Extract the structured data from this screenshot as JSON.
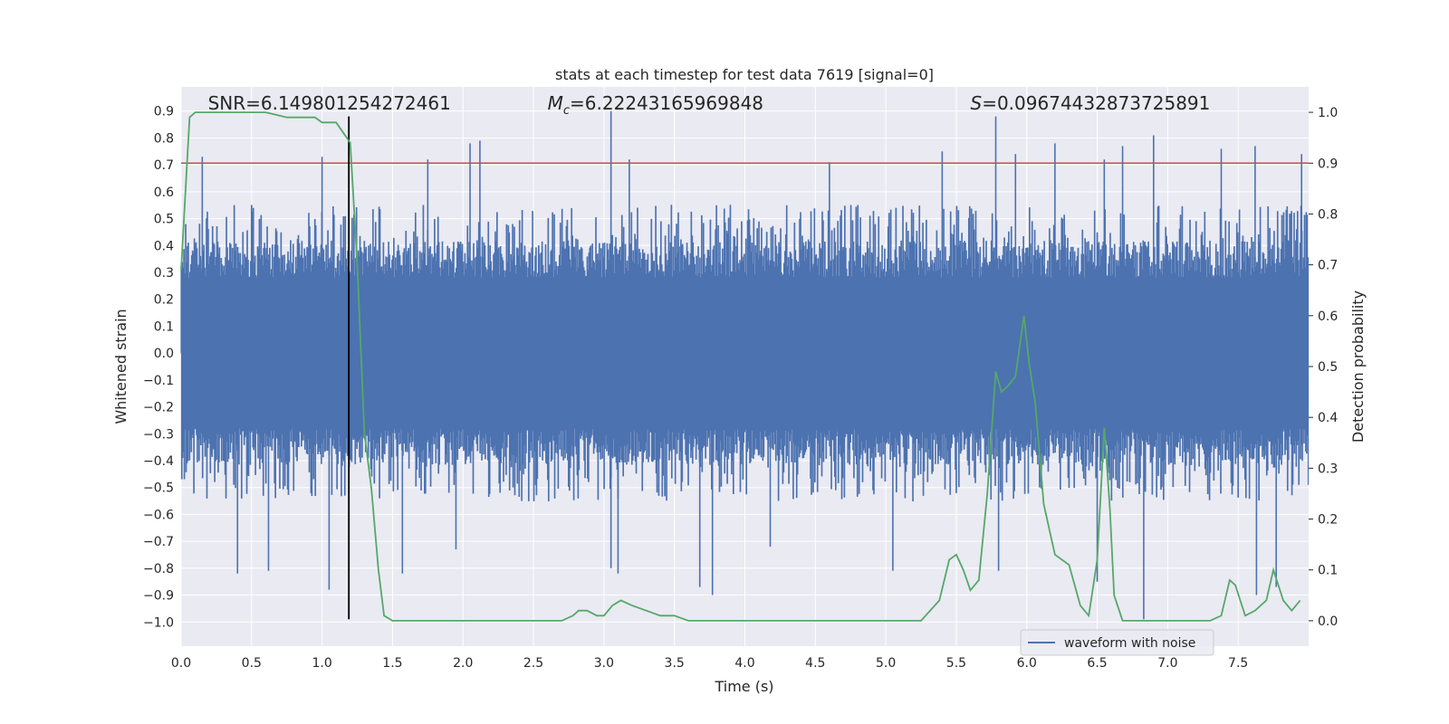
{
  "chart_data": {
    "type": "line",
    "title": "stats at each timestep for test data 7619 [signal=0]",
    "xlabel": "Time (s)",
    "ylabel": "Whitened strain",
    "y2label": "Detection probability",
    "xlim": [
      0.0,
      8.0
    ],
    "ylim": [
      -1.09,
      0.99
    ],
    "y2lim": [
      -0.05,
      1.05
    ],
    "x_ticks": [
      "0.0",
      "0.5",
      "1.0",
      "1.5",
      "2.0",
      "2.5",
      "3.0",
      "3.5",
      "4.0",
      "4.5",
      "5.0",
      "5.5",
      "6.0",
      "6.5",
      "7.0",
      "7.5"
    ],
    "y_ticks": [
      "0.9",
      "0.8",
      "0.7",
      "0.6",
      "0.5",
      "0.4",
      "0.3",
      "0.2",
      "0.1",
      "0.0",
      "−0.1",
      "−0.2",
      "−0.3",
      "−0.4",
      "−0.5",
      "−0.6",
      "−0.7",
      "−0.8",
      "−0.9",
      "−1.0"
    ],
    "y2_ticks": [
      "1.0",
      "0.9",
      "0.8",
      "0.7",
      "0.6",
      "0.5",
      "0.4",
      "0.3",
      "0.2",
      "0.1",
      "0.0"
    ],
    "grid": true,
    "legend_position": "bottom-right",
    "series": [
      {
        "name": "waveform with noise",
        "axis": "left",
        "color": "#4c72b0",
        "style": "dense-noise",
        "duration": 8.0,
        "core_amplitude": 0.28,
        "typical_peak": 0.45,
        "spikes": [
          {
            "x": 0.15,
            "y": 0.73
          },
          {
            "x": 1.0,
            "y": 0.73
          },
          {
            "x": 1.75,
            "y": 0.72
          },
          {
            "x": 2.05,
            "y": 0.78
          },
          {
            "x": 2.12,
            "y": 0.79
          },
          {
            "x": 3.05,
            "y": 0.9
          },
          {
            "x": 3.18,
            "y": 0.72
          },
          {
            "x": 4.6,
            "y": 0.71
          },
          {
            "x": 5.4,
            "y": 0.75
          },
          {
            "x": 5.78,
            "y": 0.88
          },
          {
            "x": 5.92,
            "y": 0.74
          },
          {
            "x": 6.2,
            "y": 0.78
          },
          {
            "x": 6.55,
            "y": 0.72
          },
          {
            "x": 6.68,
            "y": 0.77
          },
          {
            "x": 6.9,
            "y": 0.81
          },
          {
            "x": 7.38,
            "y": 0.76
          },
          {
            "x": 7.62,
            "y": 0.77
          },
          {
            "x": 7.95,
            "y": 0.74
          },
          {
            "x": 0.4,
            "y": -0.82
          },
          {
            "x": 0.62,
            "y": -0.81
          },
          {
            "x": 1.05,
            "y": -0.88
          },
          {
            "x": 1.57,
            "y": -0.82
          },
          {
            "x": 1.95,
            "y": -0.73
          },
          {
            "x": 3.05,
            "y": -0.8
          },
          {
            "x": 3.1,
            "y": -0.82
          },
          {
            "x": 3.68,
            "y": -0.87
          },
          {
            "x": 3.77,
            "y": -0.9
          },
          {
            "x": 4.18,
            "y": -0.72
          },
          {
            "x": 5.05,
            "y": -0.81
          },
          {
            "x": 5.8,
            "y": -0.81
          },
          {
            "x": 6.5,
            "y": -0.85
          },
          {
            "x": 6.83,
            "y": -0.99
          },
          {
            "x": 7.63,
            "y": -0.9
          },
          {
            "x": 7.77,
            "y": -0.87
          }
        ]
      },
      {
        "name": "",
        "axis": "right",
        "color": "#55a868",
        "x": [
          0.0,
          0.06,
          0.1,
          0.2,
          0.4,
          0.6,
          0.75,
          0.8,
          0.95,
          1.0,
          1.05,
          1.1,
          1.15,
          1.2,
          1.25,
          1.3,
          1.35,
          1.4,
          1.44,
          1.5,
          1.6,
          2.0,
          2.5,
          2.6,
          2.7,
          2.78,
          2.82,
          2.88,
          2.95,
          3.0,
          3.06,
          3.12,
          3.2,
          3.3,
          3.4,
          3.45,
          3.5,
          3.6,
          3.8,
          4.0,
          4.5,
          5.0,
          5.25,
          5.38,
          5.45,
          5.5,
          5.55,
          5.6,
          5.66,
          5.72,
          5.78,
          5.82,
          5.86,
          5.92,
          5.98,
          6.02,
          6.06,
          6.12,
          6.2,
          6.3,
          6.38,
          6.44,
          6.5,
          6.55,
          6.59,
          6.62,
          6.68,
          6.75,
          7.0,
          7.3,
          7.38,
          7.44,
          7.48,
          7.55,
          7.62,
          7.7,
          7.75,
          7.82,
          7.88,
          7.94
        ],
        "y": [
          0.69,
          0.99,
          1.0,
          1.0,
          1.0,
          1.0,
          0.99,
          0.99,
          0.99,
          0.98,
          0.98,
          0.98,
          0.96,
          0.94,
          0.7,
          0.37,
          0.26,
          0.1,
          0.01,
          0.0,
          0.0,
          0.0,
          0.0,
          0.0,
          0.0,
          0.01,
          0.02,
          0.02,
          0.01,
          0.01,
          0.03,
          0.04,
          0.03,
          0.02,
          0.01,
          0.01,
          0.01,
          0.0,
          0.0,
          0.0,
          0.0,
          0.0,
          0.0,
          0.04,
          0.12,
          0.13,
          0.1,
          0.06,
          0.08,
          0.25,
          0.49,
          0.45,
          0.46,
          0.48,
          0.6,
          0.5,
          0.43,
          0.23,
          0.13,
          0.11,
          0.03,
          0.01,
          0.12,
          0.38,
          0.22,
          0.05,
          0.0,
          0.0,
          0.0,
          0.0,
          0.01,
          0.08,
          0.07,
          0.01,
          0.02,
          0.04,
          0.1,
          0.04,
          0.02,
          0.04
        ]
      }
    ],
    "threshold": {
      "axis": "right",
      "y": 0.9,
      "color": "#c44e52"
    },
    "marker": {
      "x": 1.19,
      "y_from": -0.99,
      "y_to": 0.88,
      "color": "#000000"
    },
    "annotations": [
      {
        "text": "SNR=6.149801254272461",
        "x": 0.19,
        "y": 0.93
      },
      {
        "text": "=6.22243165969848",
        "prefix": "M",
        "subscript": "c",
        "x": 2.6,
        "y": 0.93
      },
      {
        "text": "=0.09674432873725891",
        "prefix": "S",
        "x": 5.6,
        "y": 0.93
      }
    ]
  }
}
